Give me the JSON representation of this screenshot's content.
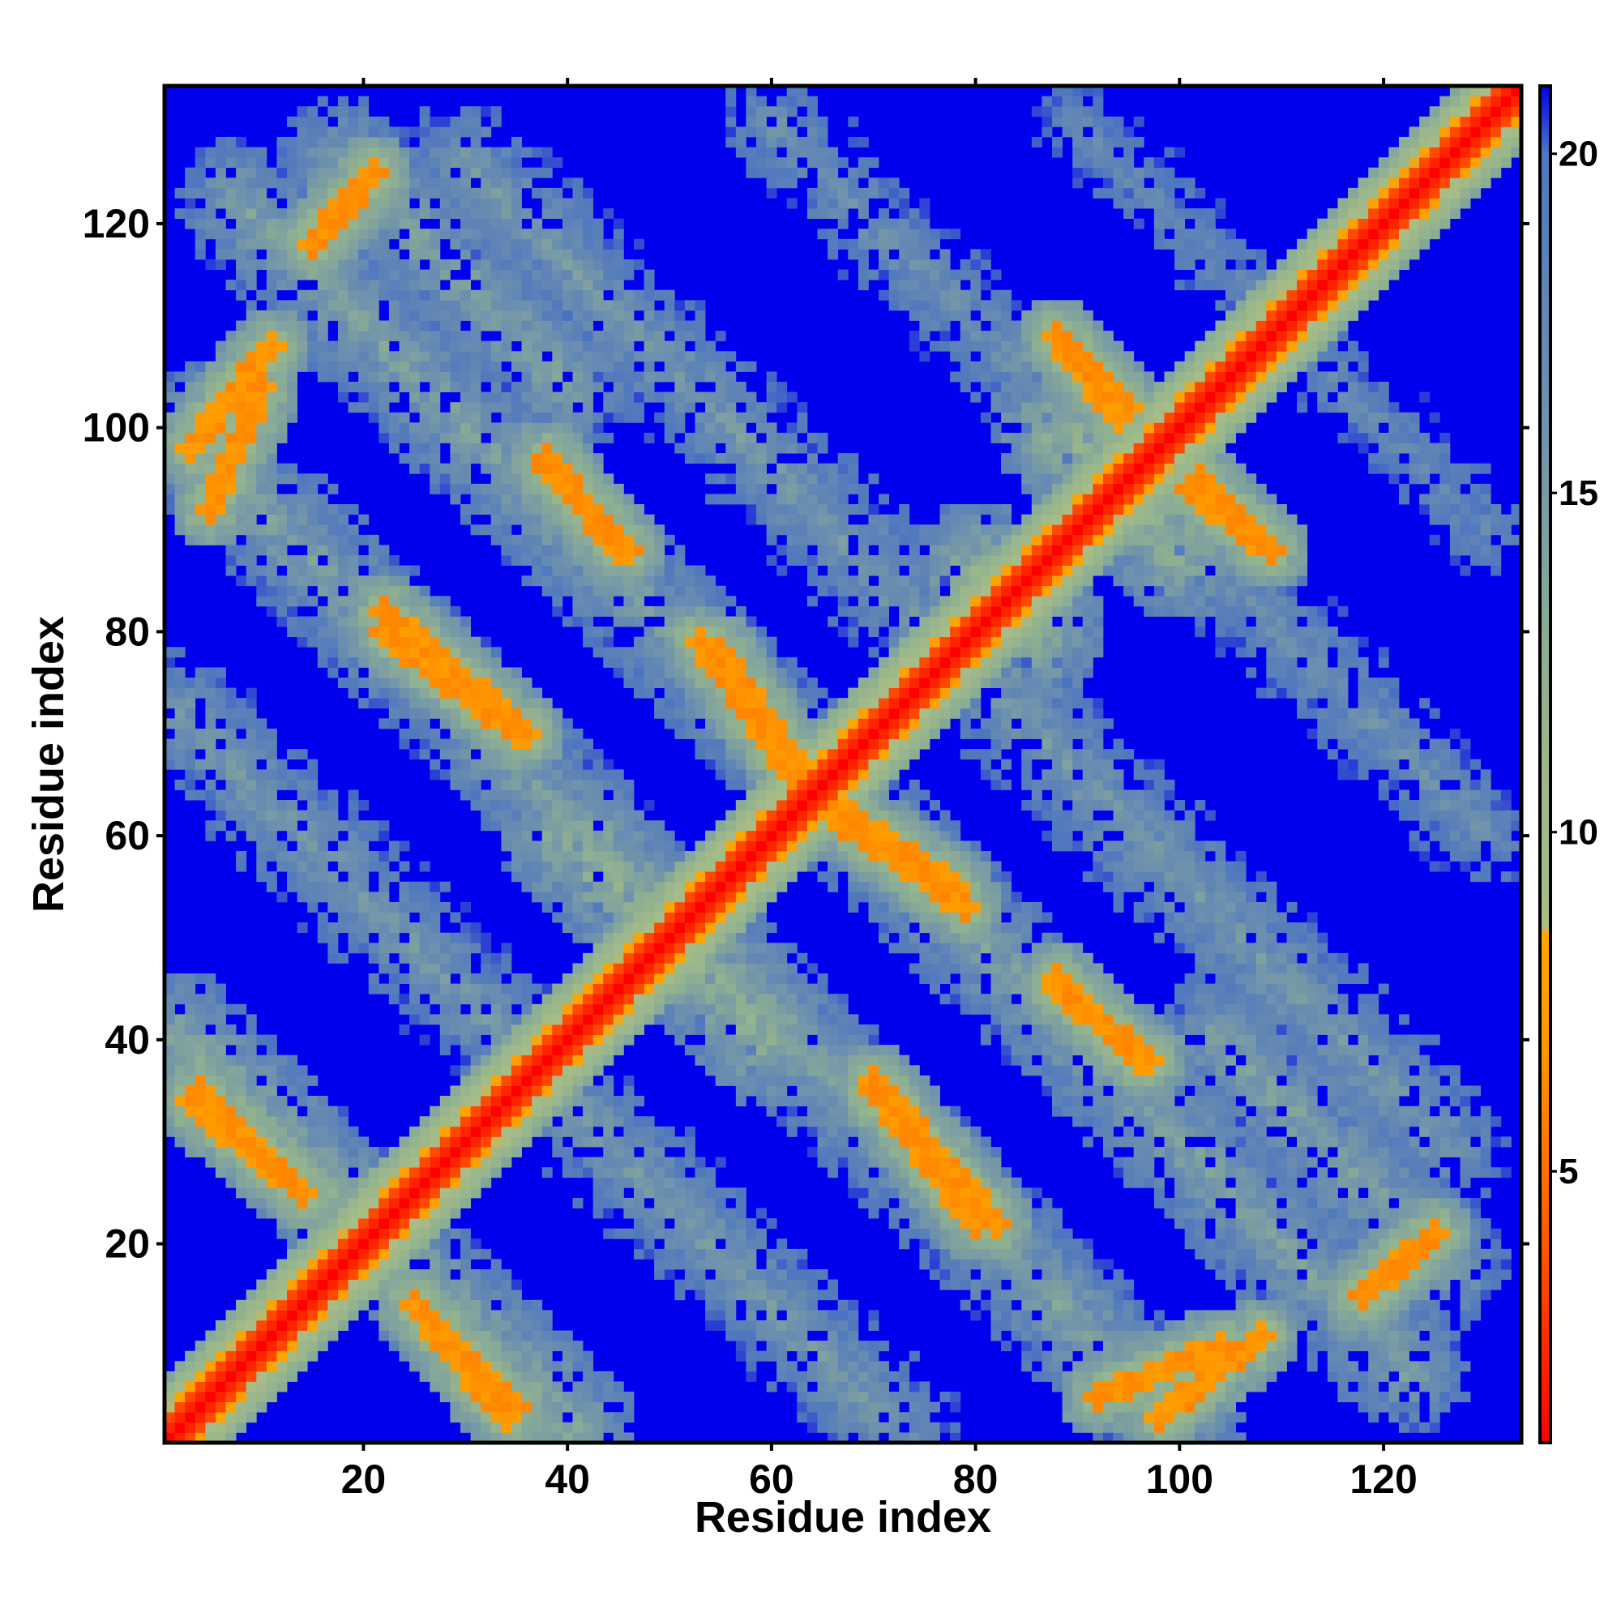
{
  "chart_data": {
    "type": "heatmap",
    "title": "",
    "xlabel": "Residue index",
    "ylabel": "Residue index",
    "xlim": [
      1,
      133
    ],
    "ylim": [
      1,
      133
    ],
    "x_ticks": [
      20,
      40,
      60,
      80,
      100,
      120
    ],
    "y_ticks": [
      20,
      40,
      60,
      80,
      100,
      120
    ],
    "colorbar": {
      "range": [
        1,
        21
      ],
      "ticks": [
        5,
        10,
        15,
        20
      ],
      "colors": [
        {
          "value": 1,
          "color": "#ff0000"
        },
        {
          "value": 4,
          "color": "#ff5a00"
        },
        {
          "value": 7,
          "color": "#ff9a00"
        },
        {
          "value": 8.5,
          "color": "#ffa500"
        },
        {
          "value": 8.6,
          "color": "#a9bd86"
        },
        {
          "value": 12,
          "color": "#93b38e"
        },
        {
          "value": 16,
          "color": "#6f92ad"
        },
        {
          "value": 20,
          "color": "#4f77bf"
        },
        {
          "value": 21,
          "color": "#0000ee"
        }
      ]
    },
    "background_color": "#0000ee",
    "matrix_description": "Symmetric residue-residue distance map; diagonal band of low distance (red), anti-diagonal orange contact streaks and green/grey halo bands.",
    "contact_streaks": [
      {
        "from": [
          3,
          34
        ],
        "to": [
          14,
          25
        ],
        "value": 6
      },
      {
        "from": [
          25,
          14
        ],
        "to": [
          35,
          4
        ],
        "value": 6
      },
      {
        "from": [
          22,
          82
        ],
        "to": [
          36,
          70
        ],
        "value": 6
      },
      {
        "from": [
          38,
          96
        ],
        "to": [
          46,
          88
        ],
        "value": 6
      },
      {
        "from": [
          53,
          79
        ],
        "to": [
          62,
          66
        ],
        "value": 6
      },
      {
        "from": [
          66,
          63
        ],
        "to": [
          78,
          55
        ],
        "value": 6
      },
      {
        "from": [
          70,
          35
        ],
        "to": [
          80,
          22
        ],
        "value": 6
      },
      {
        "from": [
          88,
          45
        ],
        "to": [
          97,
          38
        ],
        "value": 6
      },
      {
        "from": [
          88,
          109
        ],
        "to": [
          94,
          101
        ],
        "value": 6
      },
      {
        "from": [
          102,
          95
        ],
        "to": [
          109,
          88
        ],
        "value": 6
      },
      {
        "from": [
          15,
          118
        ],
        "to": [
          21,
          125
        ],
        "value": 6
      },
      {
        "from": [
          118,
          15
        ],
        "to": [
          125,
          21
        ],
        "value": 6
      },
      {
        "from": [
          3,
          98
        ],
        "to": [
          11,
          108
        ],
        "value": 6
      },
      {
        "from": [
          92,
          5
        ],
        "to": [
          104,
          10
        ],
        "value": 6
      }
    ],
    "halo_bands": [
      {
        "from": [
          2,
          40
        ],
        "to": [
          40,
          2
        ],
        "value": 12
      },
      {
        "from": [
          2,
          72
        ],
        "to": [
          72,
          2
        ],
        "value": 14
      },
      {
        "from": [
          2,
          100
        ],
        "to": [
          100,
          2
        ],
        "value": 13
      },
      {
        "from": [
          8,
          122
        ],
        "to": [
          122,
          8
        ],
        "value": 13
      },
      {
        "from": [
          30,
          126
        ],
        "to": [
          126,
          30
        ],
        "value": 14
      },
      {
        "from": [
          60,
          130
        ],
        "to": [
          130,
          60
        ],
        "value": 15
      },
      {
        "from": [
          90,
          130
        ],
        "to": [
          130,
          90
        ],
        "value": 16
      },
      {
        "from": [
          18,
          126
        ],
        "to": [
          40,
          104
        ],
        "value": 13
      },
      {
        "from": [
          104,
          40
        ],
        "to": [
          126,
          18
        ],
        "value": 13
      },
      {
        "from": [
          40,
          60
        ],
        "to": [
          60,
          40
        ],
        "value": 11
      },
      {
        "from": [
          80,
          86
        ],
        "to": [
          86,
          80
        ],
        "value": 11
      },
      {
        "from": [
          88,
          100
        ],
        "to": [
          100,
          88
        ],
        "value": 11
      }
    ]
  }
}
